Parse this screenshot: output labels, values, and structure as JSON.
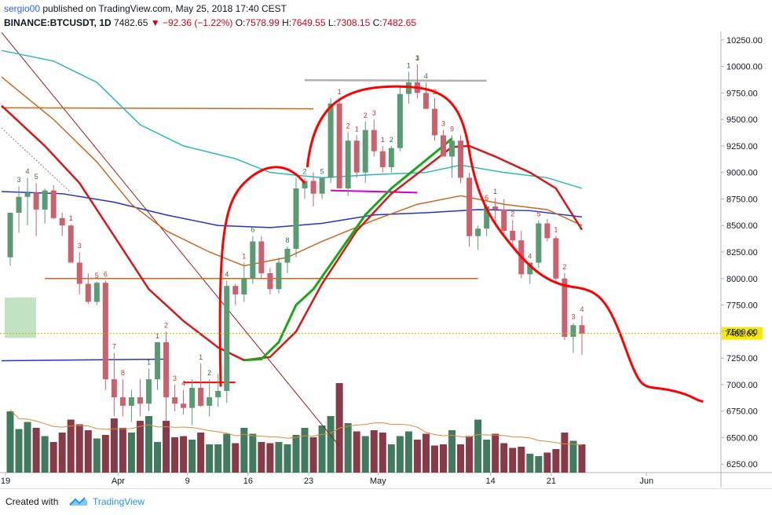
{
  "header": {
    "user": "sergio00",
    "published_text": "published on TradingView.com, May 25, 2018 17:40 CEST",
    "symbol": "BINANCE:BTCUSDT, 1D",
    "last": "7482.65",
    "change": "−92.36 (−1.22%)",
    "o_label": "O:",
    "o_value": "7578.99",
    "h_label": "H:",
    "h_value": "7649.55",
    "l_label": "L:",
    "l_value": "7308.15",
    "c_label": "C:",
    "c_value": "7482.65"
  },
  "footer": {
    "created_with": "Created with",
    "brand": "TradingView"
  },
  "colors": {
    "up": "#6aa883",
    "down": "#c2636f",
    "up_fill": "#5b9b74",
    "down_fill": "#c9616e",
    "vol_up": "#2e6b4e",
    "vol_down": "#7a2533",
    "ema_red": "#d11a1a",
    "ema_teal": "#2bb8b8",
    "ema_blue": "#2233cc",
    "ema_orange": "#c86a1e",
    "green_curve": "#1aa81a",
    "drawing_red": "#ff0000"
  },
  "chart_data": {
    "type": "candlestick",
    "y_axis": {
      "min": 6170,
      "max": 10330,
      "ticks": [
        "10250.00",
        "10000.00",
        "9750.00",
        "9500.00",
        "9250.00",
        "9000.00",
        "8750.00",
        "8500.00",
        "8250.00",
        "8000.00",
        "7750.00",
        "7500.00",
        "7250.00",
        "7000.00",
        "6750.00",
        "6500.00",
        "6250.00"
      ]
    },
    "x_axis": {
      "ticks": [
        {
          "label": "19",
          "day": 0
        },
        {
          "label": "Apr",
          "day": 13
        },
        {
          "label": "9",
          "day": 21
        },
        {
          "label": "16",
          "day": 28
        },
        {
          "label": "23",
          "day": 35
        },
        {
          "label": "May",
          "day": 43
        },
        {
          "label": "14",
          "day": 56
        },
        {
          "label": "21",
          "day": 63
        },
        {
          "label": "Jun",
          "day": 74
        }
      ]
    },
    "last_price": 7482.65,
    "candles": [
      [
        8200,
        8620,
        8120,
        8620
      ],
      [
        8620,
        8870,
        8430,
        8770
      ],
      [
        8770,
        8950,
        8500,
        8810
      ],
      [
        8810,
        8900,
        8400,
        8650
      ],
      [
        8650,
        8850,
        8520,
        8830
      ],
      [
        8830,
        8880,
        8560,
        8570
      ],
      [
        8570,
        8620,
        8400,
        8500
      ],
      [
        8500,
        8510,
        8150,
        8150
      ],
      [
        8150,
        8250,
        7850,
        7950
      ],
      [
        7950,
        8050,
        7760,
        7780
      ],
      [
        7780,
        7970,
        7750,
        7960
      ],
      [
        7960,
        7980,
        6950,
        7050
      ],
      [
        7050,
        7300,
        6700,
        6880
      ],
      [
        6880,
        7050,
        6700,
        6800
      ],
      [
        6800,
        6950,
        6650,
        6880
      ],
      [
        6880,
        7050,
        6700,
        6820
      ],
      [
        6820,
        7150,
        6750,
        7050
      ],
      [
        7050,
        7400,
        6950,
        7400
      ],
      [
        7400,
        7500,
        6650,
        6880
      ],
      [
        6880,
        7000,
        6750,
        6820
      ],
      [
        6820,
        6950,
        6720,
        6780
      ],
      [
        6780,
        7050,
        6620,
        6970
      ],
      [
        6970,
        7200,
        6790,
        6800
      ],
      [
        6800,
        7050,
        6700,
        6880
      ],
      [
        6880,
        7100,
        6790,
        6940
      ],
      [
        6940,
        7980,
        6830,
        7930
      ],
      [
        7930,
        7950,
        7750,
        7850
      ],
      [
        7850,
        8150,
        7780,
        8000
      ],
      [
        8000,
        8400,
        7950,
        8350
      ],
      [
        8350,
        8400,
        8000,
        8050
      ],
      [
        8050,
        8100,
        7850,
        7900
      ],
      [
        7900,
        8200,
        7860,
        8150
      ],
      [
        8150,
        8300,
        8050,
        8280
      ],
      [
        8280,
        8950,
        8200,
        8850
      ],
      [
        8850,
        8950,
        8750,
        8920
      ],
      [
        8920,
        9000,
        8680,
        8800
      ],
      [
        8800,
        8950,
        8750,
        8950
      ],
      [
        8950,
        9700,
        8900,
        9650
      ],
      [
        9650,
        9700,
        8850,
        8850
      ],
      [
        8850,
        9380,
        8780,
        9300
      ],
      [
        9300,
        9350,
        8950,
        9000
      ],
      [
        9000,
        9480,
        8900,
        9400
      ],
      [
        9400,
        9500,
        9150,
        9200
      ],
      [
        9200,
        9250,
        9000,
        9050
      ],
      [
        9050,
        9250,
        9000,
        9230
      ],
      [
        9230,
        9800,
        9200,
        9740
      ],
      [
        9740,
        9950,
        9650,
        9850
      ],
      [
        9850,
        10020,
        9700,
        9750
      ],
      [
        9750,
        9850,
        9600,
        9600
      ],
      [
        9600,
        9700,
        9300,
        9350
      ],
      [
        9350,
        9400,
        9150,
        9150
      ],
      [
        9150,
        9350,
        8950,
        9300
      ],
      [
        9300,
        9350,
        8900,
        8950
      ],
      [
        8950,
        9000,
        8300,
        8400
      ],
      [
        8400,
        8500,
        8270,
        8470
      ],
      [
        8470,
        8700,
        8400,
        8680
      ],
      [
        8680,
        8760,
        8500,
        8650
      ],
      [
        8650,
        8750,
        8420,
        8450
      ],
      [
        8450,
        8550,
        8300,
        8360
      ],
      [
        8360,
        8450,
        8000,
        8040
      ],
      [
        8040,
        8150,
        7950,
        8150
      ],
      [
        8150,
        8550,
        8100,
        8520
      ],
      [
        8520,
        8560,
        8350,
        8380
      ],
      [
        8380,
        8400,
        7950,
        8000
      ],
      [
        8000,
        8050,
        7420,
        7450
      ],
      [
        7450,
        7580,
        7300,
        7560
      ],
      [
        7560,
        7650,
        7280,
        7480
      ]
    ],
    "volume_relative": [
      0.52,
      0.37,
      0.43,
      0.38,
      0.31,
      0.26,
      0.34,
      0.45,
      0.41,
      0.36,
      0.29,
      0.32,
      0.46,
      0.38,
      0.34,
      0.44,
      0.48,
      0.26,
      0.44,
      0.3,
      0.31,
      0.28,
      0.34,
      0.24,
      0.24,
      0.33,
      0.25,
      0.38,
      0.33,
      0.26,
      0.25,
      0.26,
      0.24,
      0.32,
      0.38,
      0.3,
      0.4,
      0.48,
      0.76,
      0.42,
      0.35,
      0.31,
      0.36,
      0.34,
      0.24,
      0.31,
      0.35,
      0.28,
      0.33,
      0.23,
      0.24,
      0.36,
      0.24,
      0.31,
      0.45,
      0.28,
      0.33,
      0.25,
      0.21,
      0.22,
      0.16,
      0.14,
      0.17,
      0.2,
      0.34,
      0.27,
      0.24
    ],
    "count_labels": {
      "red": [
        [
          7,
          "1"
        ],
        [
          8,
          "3"
        ],
        [
          10,
          "5"
        ],
        [
          11,
          "6"
        ],
        [
          12,
          "7"
        ],
        [
          13,
          "8"
        ],
        [
          17,
          "1"
        ],
        [
          18,
          "2"
        ],
        [
          19,
          "3"
        ],
        [
          20,
          "4"
        ],
        [
          27,
          "1"
        ],
        [
          38,
          "1"
        ],
        [
          39,
          "2"
        ],
        [
          40,
          "1"
        ],
        [
          41,
          "2"
        ],
        [
          42,
          "3"
        ],
        [
          43,
          "1"
        ],
        [
          47,
          "1"
        ],
        [
          49,
          "2"
        ],
        [
          50,
          "3"
        ],
        [
          51,
          "9"
        ],
        [
          55,
          "6"
        ],
        [
          58,
          "2"
        ],
        [
          60,
          "4"
        ],
        [
          61,
          "5"
        ],
        [
          63,
          "1"
        ],
        [
          64,
          "2"
        ],
        [
          65,
          "3"
        ],
        [
          66,
          "4"
        ]
      ],
      "green": [
        [
          1,
          "3"
        ],
        [
          2,
          "4"
        ],
        [
          3,
          "5"
        ],
        [
          16,
          "1"
        ],
        [
          22,
          "1"
        ],
        [
          23,
          "2"
        ],
        [
          25,
          "4"
        ],
        [
          28,
          "6"
        ],
        [
          32,
          "8"
        ],
        [
          34,
          "2"
        ],
        [
          36,
          "5"
        ],
        [
          44,
          "2"
        ],
        [
          46,
          "1"
        ],
        [
          47,
          "3"
        ],
        [
          48,
          "4"
        ],
        [
          56,
          "1"
        ]
      ]
    }
  }
}
